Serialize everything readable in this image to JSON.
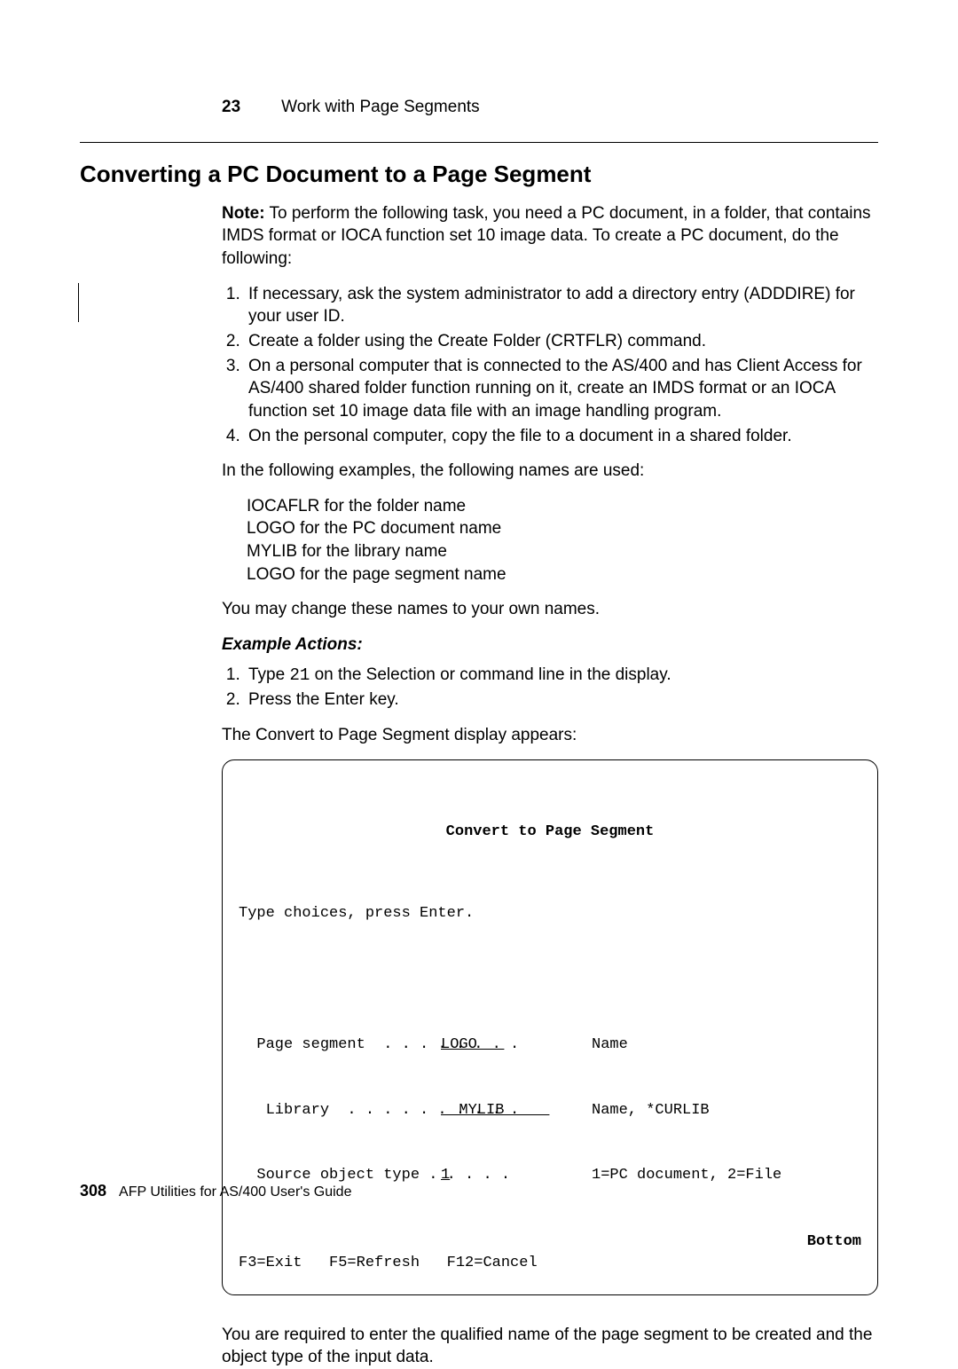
{
  "running_head": {
    "chapter_num": "23",
    "chapter_title": "Work with Page Segments"
  },
  "h1": "Converting a PC Document to a Page Segment",
  "note": {
    "label": "Note:",
    "text": "To perform the following task, you need a PC document, in a folder, that contains IMDS format or IOCA function set 10 image data.  To create a PC document, do the following:"
  },
  "steps": [
    "If necessary, ask the system administrator to add a directory entry (ADDDIRE) for your user ID.",
    "Create a folder using the Create Folder (CRTFLR) command.",
    "On a personal computer that is connected to the AS/400 and has Client Access for AS/400 shared folder function running on it, create an IMDS format or an IOCA function set 10 image data file with an image handling program.",
    "On the personal computer, copy the file to a document in a shared folder."
  ],
  "p_examples_intro": "In the following examples, the following names are used:",
  "names": {
    "l1": "IOCAFLR for the folder name",
    "l2": "LOGO for the PC document name",
    "l3": "MYLIB for the library name",
    "l4": "LOGO for the page segment name"
  },
  "p_change_names": "You may change these names to your own names.",
  "example_actions_h": "Example Actions:",
  "ex_step1_a": "Type ",
  "ex_step1_code": "21",
  "ex_step1_b": " on the Selection or command line in the display.",
  "ex_step2": "Press the Enter key.",
  "p_display_appears": "The Convert to Page Segment display appears:",
  "terminal": {
    "title": "Convert to Page Segment",
    "prompt": "Type choices, press Enter.",
    "rows": [
      {
        "label": "  Page segment  . . . . . . . .",
        "value": "LOGO   ",
        "value_pad": "",
        "hint": "Name"
      },
      {
        "label": "   Library  . . . . . . . . . .",
        "value": "  MYLIB     ",
        "value_pad": "",
        "hint": "Name, *CURLIB"
      },
      {
        "label": "  Source object type . . . . .",
        "value": "1",
        "value_pad": "             ",
        "hint": "1=PC document, 2=File"
      }
    ],
    "bottom": "Bottom",
    "fkeys": "F3=Exit   F5=Refresh   F12=Cancel"
  },
  "p_after": "You are required to enter the qualified name of the page segment to be created and the object type of the input data.",
  "footer": {
    "page": "308",
    "book": "AFP Utilities for AS/400 User's Guide"
  }
}
